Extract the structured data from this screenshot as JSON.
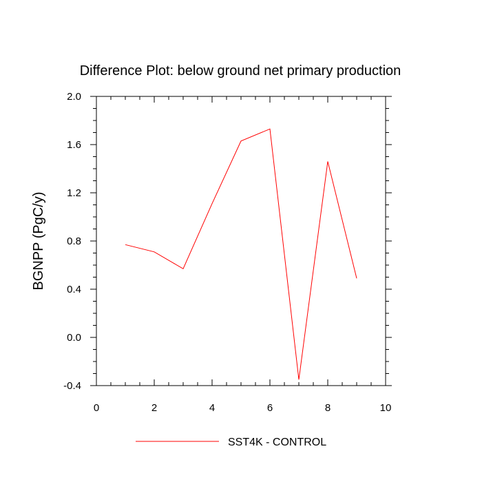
{
  "chart_data": {
    "type": "line",
    "title": "Difference Plot: below ground net primary production",
    "xlabel": "",
    "ylabel": "BGNPP  (PgC/y)",
    "xlim": [
      0,
      10
    ],
    "ylim": [
      -0.4,
      2.0
    ],
    "x_ticks": [
      0,
      2,
      4,
      6,
      8,
      10
    ],
    "y_ticks": [
      -0.4,
      0.0,
      0.4,
      0.8,
      1.2,
      1.6,
      2.0
    ],
    "x_tick_labels": [
      "0",
      "2",
      "4",
      "6",
      "8",
      "10"
    ],
    "y_tick_labels": [
      "-0.4",
      "0.0",
      "0.4",
      "0.8",
      "1.2",
      "1.6",
      "2.0"
    ],
    "grid": false,
    "legend_position": "bottom-center",
    "series": [
      {
        "name": "SST4K - CONTROL",
        "color": "#ff0000",
        "x": [
          1,
          2,
          3,
          4,
          5,
          6,
          7,
          8,
          9
        ],
        "y": [
          0.77,
          0.71,
          0.57,
          1.11,
          1.63,
          1.73,
          -0.35,
          1.46,
          0.49
        ]
      }
    ]
  }
}
